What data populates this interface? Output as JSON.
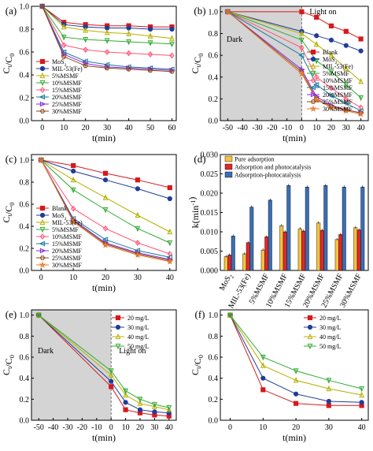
{
  "chart_data": [
    {
      "panel_label": "(a)",
      "type": "line",
      "xlabel": "t(min)",
      "ylabel": "Ct/C0",
      "xlim": [
        -5,
        62
      ],
      "ylim": [
        0,
        1.0
      ],
      "xticks": [
        "0",
        "10",
        "20",
        "30",
        "40",
        "50",
        "60"
      ],
      "yticks": [
        "0.0",
        "0.2",
        "0.4",
        "0.6",
        "0.8",
        "1.0"
      ],
      "legend_position": "bottom-left",
      "series": [
        {
          "name": "MoS2",
          "color": "#d7191c",
          "marker": "square",
          "x": [
            0,
            10,
            20,
            30,
            40,
            50,
            60
          ],
          "y": [
            1.0,
            0.86,
            0.84,
            0.83,
            0.83,
            0.82,
            0.82
          ]
        },
        {
          "name": "MIL-53(Fe)",
          "color": "#1f3d99",
          "marker": "circle",
          "x": [
            0,
            10,
            20,
            30,
            40,
            50,
            60
          ],
          "y": [
            1.0,
            0.84,
            0.82,
            0.81,
            0.81,
            0.8,
            0.8
          ]
        },
        {
          "name": "5%MSMF",
          "color": "#b8b000",
          "marker": "triangle",
          "x": [
            0,
            10,
            20,
            30,
            40,
            50,
            60
          ],
          "y": [
            1.0,
            0.82,
            0.79,
            0.77,
            0.76,
            0.74,
            0.72
          ]
        },
        {
          "name": "10%MSMF",
          "color": "#33aa33",
          "marker": "triangle-down",
          "x": [
            0,
            10,
            20,
            30,
            40,
            50,
            60
          ],
          "y": [
            1.0,
            0.73,
            0.71,
            0.7,
            0.69,
            0.68,
            0.67
          ]
        },
        {
          "name": "15%MSMF",
          "color": "#ff5577",
          "marker": "diamond",
          "x": [
            0,
            10,
            20,
            30,
            40,
            50,
            60
          ],
          "y": [
            1.0,
            0.66,
            0.62,
            0.6,
            0.59,
            0.58,
            0.57
          ]
        },
        {
          "name": "20%MSMF",
          "color": "#1a7a9a",
          "marker": "triangle-left",
          "x": [
            0,
            10,
            20,
            30,
            40,
            50,
            60
          ],
          "y": [
            1.0,
            0.6,
            0.52,
            0.49,
            0.47,
            0.46,
            0.45
          ]
        },
        {
          "name": "25%MSMF",
          "color": "#8a2be2",
          "marker": "triangle-right",
          "x": [
            0,
            10,
            20,
            30,
            40,
            50,
            60
          ],
          "y": [
            1.0,
            0.58,
            0.5,
            0.47,
            0.46,
            0.45,
            0.44
          ]
        },
        {
          "name": "30%MSMF",
          "color": "#8b4513",
          "marker": "hexagon",
          "x": [
            0,
            10,
            20,
            30,
            40,
            50,
            60
          ],
          "y": [
            1.0,
            0.56,
            0.48,
            0.46,
            0.45,
            0.44,
            0.43
          ]
        }
      ]
    },
    {
      "panel_label": "(b)",
      "type": "line",
      "xlabel": "t(min)",
      "ylabel": "Ct/C0",
      "xlim": [
        -55,
        45
      ],
      "ylim": [
        0,
        1.05
      ],
      "xticks": [
        "-50",
        "-40",
        "-30",
        "-20",
        "-10",
        "0",
        "10",
        "20",
        "30",
        "40"
      ],
      "yticks": [
        "0.0",
        "0.2",
        "0.4",
        "0.6",
        "0.8",
        "1.0"
      ],
      "shaded_region": {
        "x": [
          -55,
          0
        ],
        "label": "Dark"
      },
      "annotation": "Light on",
      "legend_position": "right",
      "series": [
        {
          "name": "Blank",
          "color": "#d7191c",
          "marker": "square",
          "x": [
            -50,
            0,
            10,
            20,
            30,
            40
          ],
          "y": [
            1.0,
            1.0,
            0.95,
            0.87,
            0.82,
            0.75
          ]
        },
        {
          "name": "MoS2",
          "color": "#1f3d99",
          "marker": "circle",
          "x": [
            -50,
            0,
            10,
            20,
            30,
            40
          ],
          "y": [
            1.0,
            0.82,
            0.78,
            0.74,
            0.69,
            0.64
          ]
        },
        {
          "name": "MIL-53(Fe)",
          "color": "#b8b000",
          "marker": "triangle",
          "x": [
            -50,
            0,
            10,
            20,
            30,
            40
          ],
          "y": [
            1.0,
            0.8,
            0.7,
            0.6,
            0.48,
            0.36
          ]
        },
        {
          "name": "5%MSMF",
          "color": "#33aa33",
          "marker": "triangle-down",
          "x": [
            -50,
            0,
            10,
            20,
            30,
            40
          ],
          "y": [
            1.0,
            0.74,
            0.55,
            0.45,
            0.33,
            0.21
          ]
        },
        {
          "name": "10%MSMF",
          "color": "#ff5577",
          "marker": "diamond",
          "x": [
            -50,
            0,
            10,
            20,
            30,
            40
          ],
          "y": [
            1.0,
            0.67,
            0.4,
            0.3,
            0.2,
            0.12
          ]
        },
        {
          "name": "15%MSMF",
          "color": "#1a7a9a",
          "marker": "triangle-left",
          "x": [
            -50,
            0,
            10,
            20,
            30,
            40
          ],
          "y": [
            1.0,
            0.6,
            0.33,
            0.23,
            0.16,
            0.09
          ]
        },
        {
          "name": "20%MSMF",
          "color": "#8a2be2",
          "marker": "triangle-right",
          "x": [
            -50,
            0,
            10,
            20,
            30,
            40
          ],
          "y": [
            1.0,
            0.47,
            0.22,
            0.14,
            0.1,
            0.07
          ]
        },
        {
          "name": "25%MSMF",
          "color": "#8b4513",
          "marker": "hexagon",
          "x": [
            -50,
            0,
            10,
            20,
            30,
            40
          ],
          "y": [
            1.0,
            0.45,
            0.2,
            0.13,
            0.1,
            0.07
          ]
        },
        {
          "name": "30%MSMF",
          "color": "#e87d2c",
          "marker": "star",
          "x": [
            -50,
            0,
            10,
            20,
            30,
            40
          ],
          "y": [
            1.0,
            0.43,
            0.19,
            0.12,
            0.09,
            0.06
          ]
        }
      ]
    },
    {
      "panel_label": "(c)",
      "type": "line",
      "xlabel": "t(min)",
      "ylabel": "Ct/C0",
      "xlim": [
        -3,
        42
      ],
      "ylim": [
        0,
        1.05
      ],
      "xticks": [
        "0",
        "10",
        "20",
        "30",
        "40"
      ],
      "yticks": [
        "0.0",
        "0.2",
        "0.4",
        "0.6",
        "0.8",
        "1.0"
      ],
      "legend_position": "left",
      "series": [
        {
          "name": "Blank",
          "color": "#d7191c",
          "marker": "square",
          "x": [
            0,
            10,
            20,
            30,
            40
          ],
          "y": [
            1.0,
            0.95,
            0.88,
            0.82,
            0.75
          ]
        },
        {
          "name": "MoS2",
          "color": "#1f3d99",
          "marker": "circle",
          "x": [
            0,
            10,
            20,
            30,
            40
          ],
          "y": [
            1.0,
            0.9,
            0.82,
            0.74,
            0.65
          ]
        },
        {
          "name": "MIL-53(Fe)",
          "color": "#b8b000",
          "marker": "triangle",
          "x": [
            0,
            10,
            20,
            30,
            40
          ],
          "y": [
            1.0,
            0.82,
            0.66,
            0.5,
            0.35
          ]
        },
        {
          "name": "5%MSMF",
          "color": "#33aa33",
          "marker": "triangle-down",
          "x": [
            0,
            10,
            20,
            30,
            40
          ],
          "y": [
            1.0,
            0.73,
            0.55,
            0.38,
            0.25
          ]
        },
        {
          "name": "10%MSMF",
          "color": "#ff5577",
          "marker": "diamond",
          "x": [
            0,
            10,
            20,
            30,
            40
          ],
          "y": [
            1.0,
            0.56,
            0.38,
            0.25,
            0.15
          ]
        },
        {
          "name": "15%MSMF",
          "color": "#1a7a9a",
          "marker": "triangle-left",
          "x": [
            0,
            10,
            20,
            30,
            40
          ],
          "y": [
            1.0,
            0.47,
            0.28,
            0.18,
            0.12
          ]
        },
        {
          "name": "20%MSMF",
          "color": "#8a2be2",
          "marker": "triangle-right",
          "x": [
            0,
            10,
            20,
            30,
            40
          ],
          "y": [
            1.0,
            0.46,
            0.25,
            0.16,
            0.1
          ]
        },
        {
          "name": "25%MSMF",
          "color": "#8b4513",
          "marker": "hexagon",
          "x": [
            0,
            10,
            20,
            30,
            40
          ],
          "y": [
            1.0,
            0.45,
            0.24,
            0.15,
            0.09
          ]
        },
        {
          "name": "30%MSMF",
          "color": "#e87d2c",
          "marker": "star",
          "x": [
            0,
            10,
            20,
            30,
            40
          ],
          "y": [
            1.0,
            0.44,
            0.23,
            0.14,
            0.08
          ]
        }
      ]
    },
    {
      "panel_label": "(d)",
      "type": "bar",
      "ylabel": "k(min-1)",
      "ylim": [
        0,
        0.03
      ],
      "yticks": [
        "0.000",
        "0.005",
        "0.010",
        "0.015",
        "0.020",
        "0.025",
        "0.030"
      ],
      "categories": [
        "MoS2",
        "MIL-53(Fe)",
        "5%MSMF",
        "10%MSMF",
        "15%MSMF",
        "20%MSMF",
        "25%MSMF",
        "30%MSMF"
      ],
      "legend_position": "top-left",
      "series": [
        {
          "name": "Pure adsorption",
          "color": "#f5c242",
          "values": [
            0.0036,
            0.0043,
            0.0053,
            0.0116,
            0.0108,
            0.0123,
            0.008,
            0.0111
          ]
        },
        {
          "name": "Adsorption and photocatalysis",
          "color": "#e02828",
          "values": [
            0.004,
            0.0072,
            0.0087,
            0.01,
            0.0102,
            0.0104,
            0.0093,
            0.0105
          ]
        },
        {
          "name": "Adsorption-photocatalysis",
          "color": "#3a6fb5",
          "values": [
            0.0089,
            0.0164,
            0.0182,
            0.022,
            0.0216,
            0.022,
            0.0216,
            0.0216
          ]
        }
      ]
    },
    {
      "panel_label": "(e)",
      "type": "line",
      "xlabel": "t(min)",
      "ylabel": "Ct/C0",
      "xlim": [
        -55,
        45
      ],
      "ylim": [
        0,
        1.05
      ],
      "xticks": [
        "-50",
        "-40",
        "-30",
        "-20",
        "-10",
        "0",
        "10",
        "20",
        "30",
        "40"
      ],
      "yticks": [
        "0.0",
        "0.2",
        "0.4",
        "0.6",
        "0.8",
        "1.0"
      ],
      "shaded_region": {
        "x": [
          -55,
          0
        ],
        "label": "Dark"
      },
      "annotation": "Light on",
      "legend_position": "top-right",
      "series": [
        {
          "name": "20 mg/L",
          "color": "#d7191c",
          "marker": "square",
          "x": [
            -50,
            0,
            10,
            20,
            30,
            40
          ],
          "y": [
            1.0,
            0.32,
            0.1,
            0.07,
            0.05,
            0.04
          ]
        },
        {
          "name": "30 mg/L",
          "color": "#1f3d99",
          "marker": "circle",
          "x": [
            -50,
            0,
            10,
            20,
            30,
            40
          ],
          "y": [
            1.0,
            0.37,
            0.17,
            0.1,
            0.08,
            0.07
          ]
        },
        {
          "name": "40 mg/L",
          "color": "#b8b000",
          "marker": "triangle",
          "x": [
            -50,
            0,
            10,
            20,
            30,
            40
          ],
          "y": [
            1.0,
            0.43,
            0.24,
            0.16,
            0.13,
            0.1
          ]
        },
        {
          "name": "50 mg/L",
          "color": "#33aa33",
          "marker": "triangle-down",
          "x": [
            -50,
            0,
            10,
            20,
            30,
            40
          ],
          "y": [
            1.0,
            0.47,
            0.28,
            0.2,
            0.15,
            0.12
          ]
        }
      ]
    },
    {
      "panel_label": "(f)",
      "type": "line",
      "xlabel": "t(min)",
      "ylabel": "Ct/C0",
      "xlim": [
        -3,
        42
      ],
      "ylim": [
        0,
        1.05
      ],
      "xticks": [
        "0",
        "10",
        "20",
        "30",
        "40"
      ],
      "yticks": [
        "0.0",
        "0.2",
        "0.4",
        "0.6",
        "0.8",
        "1.0"
      ],
      "legend_position": "top-right",
      "series": [
        {
          "name": "20 mg/L",
          "color": "#d7191c",
          "marker": "square",
          "x": [
            0,
            10,
            20,
            30,
            40
          ],
          "y": [
            1.0,
            0.29,
            0.16,
            0.14,
            0.14
          ]
        },
        {
          "name": "30 mg/L",
          "color": "#1f3d99",
          "marker": "circle",
          "x": [
            0,
            10,
            20,
            30,
            40
          ],
          "y": [
            1.0,
            0.4,
            0.25,
            0.18,
            0.17
          ]
        },
        {
          "name": "40 mg/L",
          "color": "#b8b000",
          "marker": "triangle",
          "x": [
            0,
            10,
            20,
            30,
            40
          ],
          "y": [
            1.0,
            0.52,
            0.38,
            0.3,
            0.24
          ]
        },
        {
          "name": "50 mg/L",
          "color": "#33aa33",
          "marker": "triangle-down",
          "x": [
            0,
            10,
            20,
            30,
            40
          ],
          "y": [
            1.0,
            0.6,
            0.47,
            0.38,
            0.3
          ]
        }
      ]
    }
  ]
}
